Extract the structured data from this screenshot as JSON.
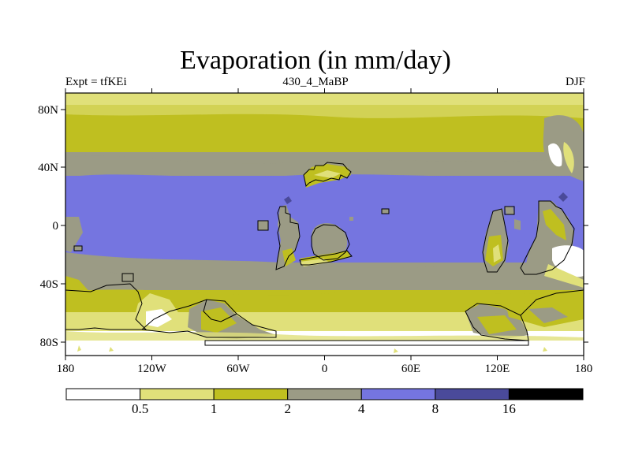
{
  "title": "Evaporation (in mm/day)",
  "subtitle_left": "Expt = tfKEi",
  "subtitle_center": "430_4_MaBP",
  "subtitle_right": "DJF",
  "map": {
    "lon_ticks": [
      "180",
      "120W",
      "60W",
      "0",
      "60E",
      "120E",
      "180"
    ],
    "lat_ticks": [
      "80N",
      "40N",
      "0",
      "40S",
      "80S"
    ]
  },
  "colorbar": {
    "colors": [
      "#ffffff",
      "#e0e07a",
      "#bfbf20",
      "#9b9b85",
      "#7575e0",
      "#4a4a9a",
      "#000000"
    ],
    "labels": [
      "0.5",
      "1",
      "2",
      "4",
      "8",
      "16"
    ]
  }
}
